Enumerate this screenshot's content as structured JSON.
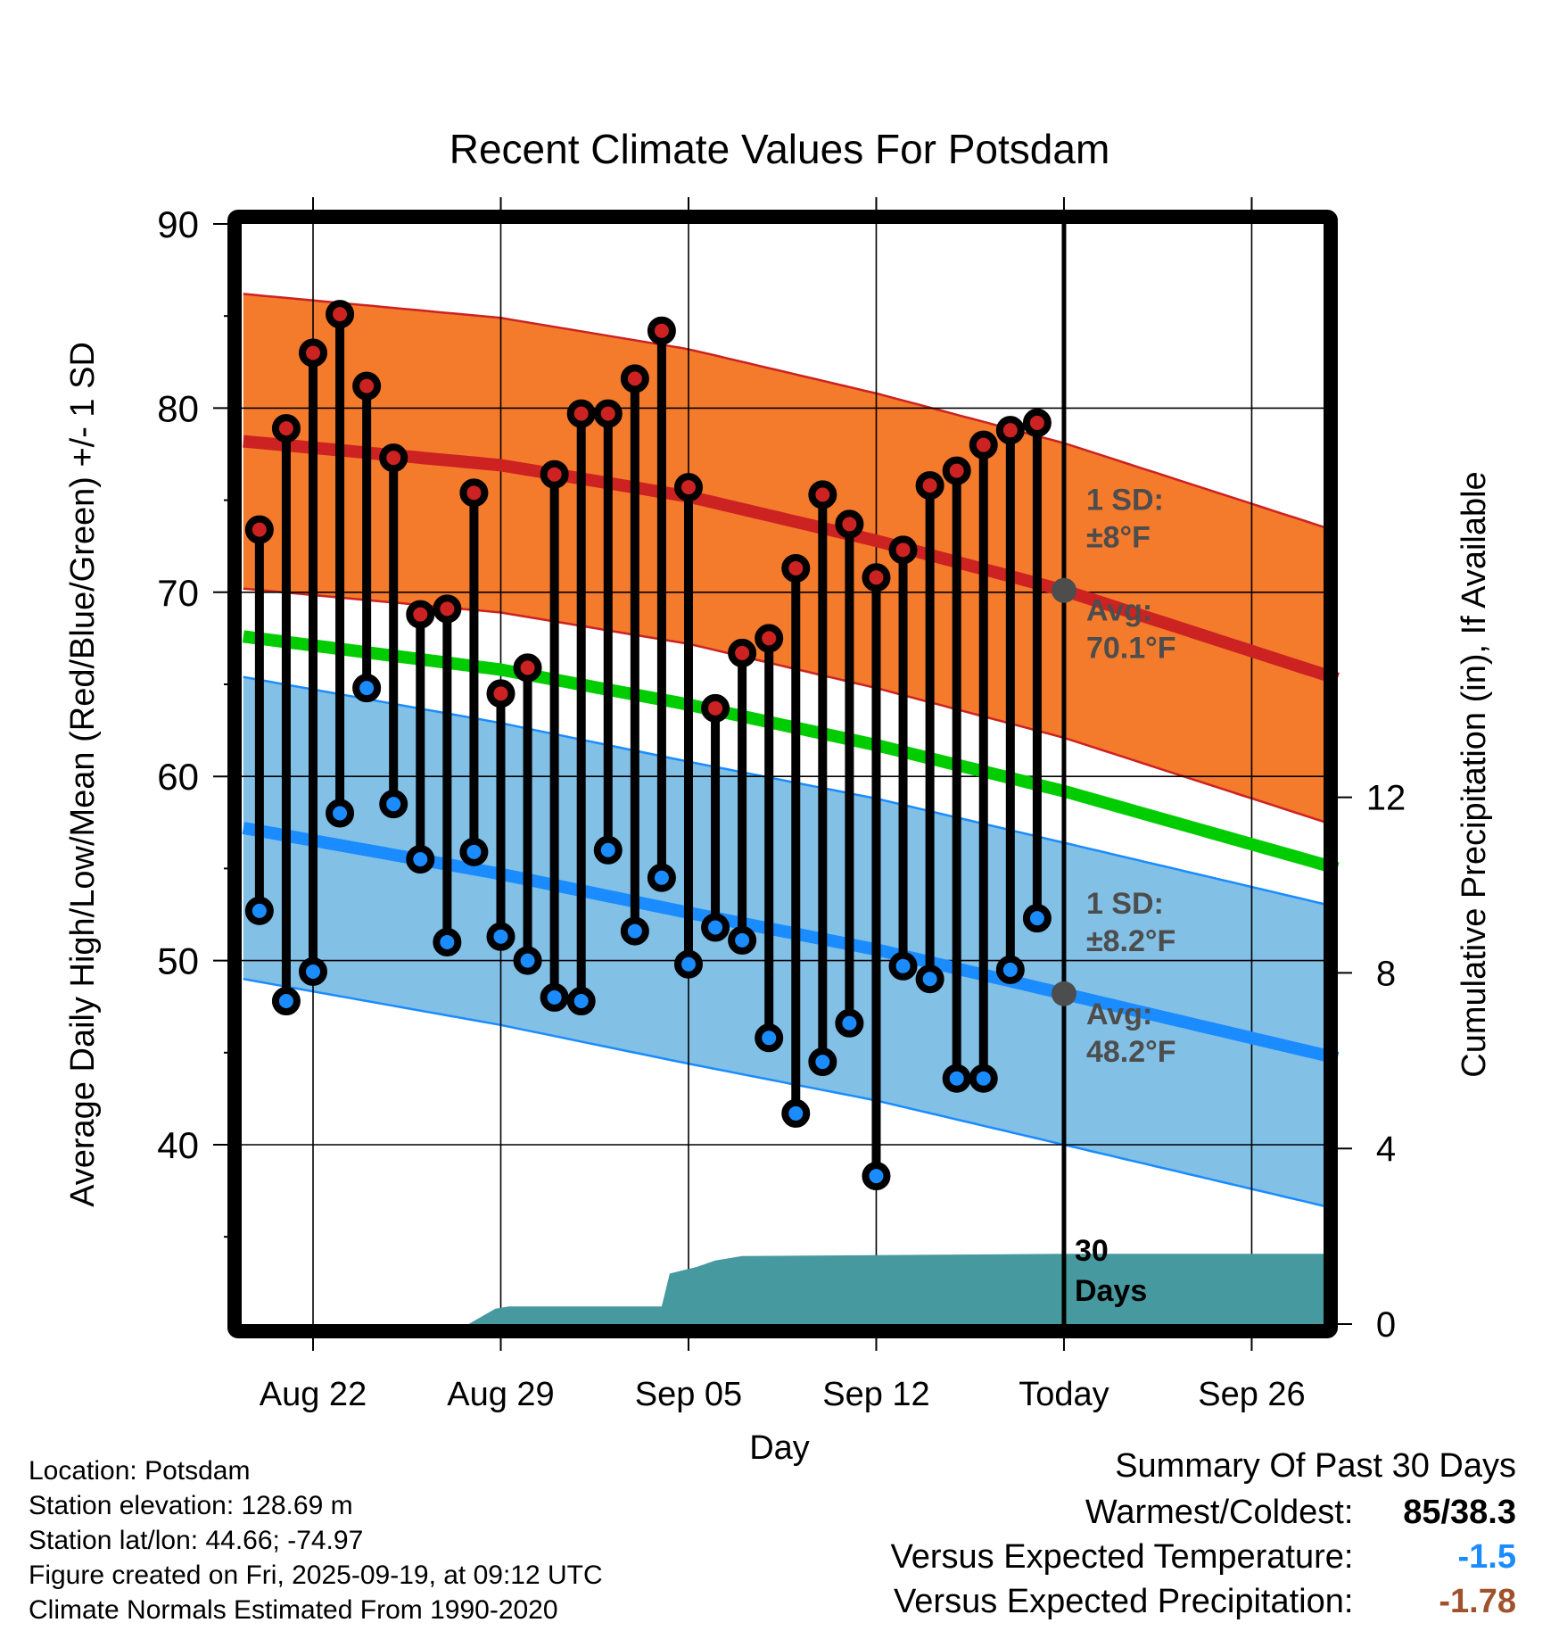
{
  "chart_data": {
    "type": "line",
    "title": "Recent Climate Values For Potsdam",
    "xlabel": "Day",
    "ylabel": "Average Daily High/Low/Mean (Red/Blue/Green) +/- 1 SD",
    "y2label": "Cumulative Precipitation (in), If Available",
    "ylim": [
      30,
      90
    ],
    "y2lim": [
      0,
      25
    ],
    "yticks": [
      40,
      50,
      60,
      70,
      80,
      90
    ],
    "y2ticks": [
      0,
      4,
      8,
      12
    ],
    "xticks": [
      {
        "day": 0,
        "label": "Aug 22"
      },
      {
        "day": 7,
        "label": "Aug 29"
      },
      {
        "day": 14,
        "label": "Sep 05"
      },
      {
        "day": 21,
        "label": "Sep 12"
      },
      {
        "day": 28,
        "label": "Today"
      },
      {
        "day": 35,
        "label": "Sep 26"
      }
    ],
    "x_day_range": [
      -2.6,
      38.2
    ],
    "grid": true,
    "today_day": 28,
    "observed": {
      "days": [
        -2,
        -1,
        0,
        1,
        2,
        3,
        4,
        5,
        6,
        7,
        8,
        9,
        10,
        11,
        12,
        13,
        14,
        15,
        16,
        17,
        18,
        19,
        20,
        21,
        22,
        23,
        24,
        25,
        26,
        27
      ],
      "highs": [
        73.4,
        78.9,
        83.0,
        85.1,
        81.2,
        77.3,
        68.8,
        69.1,
        75.4,
        64.5,
        65.9,
        76.4,
        79.7,
        79.7,
        81.6,
        84.2,
        75.7,
        63.7,
        66.7,
        67.5,
        71.3,
        75.3,
        73.7,
        70.8,
        72.3,
        75.8,
        76.6,
        78.0,
        78.8,
        79.2
      ],
      "lows": [
        52.7,
        47.8,
        49.4,
        58.0,
        64.8,
        58.5,
        55.5,
        51.0,
        55.9,
        51.3,
        50.0,
        48.0,
        47.8,
        56.0,
        51.6,
        54.5,
        49.8,
        51.8,
        51.1,
        45.8,
        41.7,
        44.5,
        46.6,
        38.3,
        49.7,
        49.0,
        43.6,
        43.6,
        49.5,
        52.3
      ]
    },
    "normals": {
      "days": [
        -2.6,
        7,
        14,
        21,
        28,
        38.2
      ],
      "high_mean": [
        78.2,
        76.9,
        75.2,
        72.8,
        70.1,
        65.3
      ],
      "low_mean": [
        57.2,
        54.7,
        52.6,
        50.6,
        48.2,
        44.7
      ],
      "mean": [
        67.6,
        65.8,
        63.9,
        61.7,
        59.2,
        55.0
      ],
      "high_sd": 8,
      "low_sd": 8.2
    },
    "precip_cumulative": {
      "days": [
        -2.6,
        5.8,
        6.8,
        7.3,
        12.0,
        13.0,
        13.3,
        14.3,
        15.0,
        16.0,
        28.0,
        38.2
      ],
      "values": [
        0,
        0,
        0.35,
        0.4,
        0.4,
        0.4,
        1.15,
        1.3,
        1.45,
        1.55,
        1.6,
        1.6
      ]
    },
    "annotations": {
      "high_sd_line1": "1 SD:",
      "high_sd_line2": "±8°F",
      "high_avg_line1": "Avg:",
      "high_avg_line2": "70.1°F",
      "low_sd_line1": "1 SD:",
      "low_sd_line2": "±8.2°F",
      "low_avg_line1": "Avg:",
      "low_avg_line2": "48.2°F",
      "period_line1": "30",
      "period_line2": "Days"
    },
    "colors": {
      "high_band": "#f47a2c",
      "high_line": "#cc2222",
      "low_band": "#82c0e6",
      "low_line": "#1a8cff",
      "mean_line": "#00cc00",
      "precip": "#46999f",
      "high_marker": "#cc2222",
      "low_marker": "#1a8cff",
      "annotation": "#4d4d4d"
    }
  },
  "footer": {
    "info_lines": [
      "Location: Potsdam",
      "Station elevation: 128.69 m",
      "Station lat/lon: 44.66; -74.97",
      "Figure created on Fri, 2025-09-19, at 09:12 UTC",
      "Climate Normals Estimated From 1990-2020"
    ],
    "summary": {
      "heading": "Summary Of Past 30 Days",
      "rows": [
        {
          "label": "Warmest/Coldest:",
          "value": "85/38.3",
          "color": "#000000"
        },
        {
          "label": "Versus Expected Temperature:",
          "value": "-1.5",
          "color": "#1a8cff"
        },
        {
          "label": "Versus Expected Precipitation:",
          "value": "-1.78",
          "color": "#a0522d"
        }
      ]
    }
  }
}
